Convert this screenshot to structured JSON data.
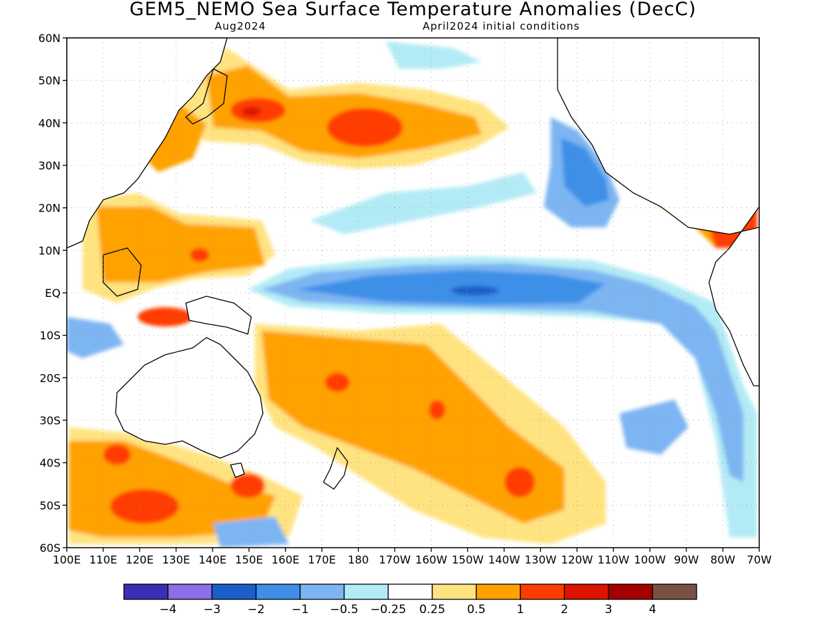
{
  "title": "GEM5_NEMO Sea Surface Temperature Anomalies (DecC)",
  "subtitle_left": "Aug2024",
  "subtitle_right": "April2024 initial conditions",
  "map": {
    "lat_labels": [
      "60N",
      "50N",
      "40N",
      "30N",
      "20N",
      "10N",
      "EQ",
      "10S",
      "20S",
      "30S",
      "40S",
      "50S",
      "60S"
    ],
    "lon_labels": [
      "100E",
      "110E",
      "120E",
      "130E",
      "140E",
      "150E",
      "160E",
      "170E",
      "180",
      "170W",
      "160W",
      "150W",
      "140W",
      "130W",
      "120W",
      "110W",
      "100W",
      "90W",
      "80W",
      "70W"
    ]
  },
  "colorbar": {
    "colors": [
      "#3d2db5",
      "#8a6fe6",
      "#1a5fc9",
      "#3d8fe8",
      "#7db5f2",
      "#b2ebf5",
      "#ffffff",
      "#ffe380",
      "#ffa200",
      "#ff3c00",
      "#dd1400",
      "#a40000",
      "#7a5045"
    ],
    "labels": [
      "−4",
      "−3",
      "−2",
      "−1",
      "−0.5",
      "−0.25",
      "0.25",
      "0.5",
      "1",
      "2",
      "3",
      "4"
    ]
  }
}
